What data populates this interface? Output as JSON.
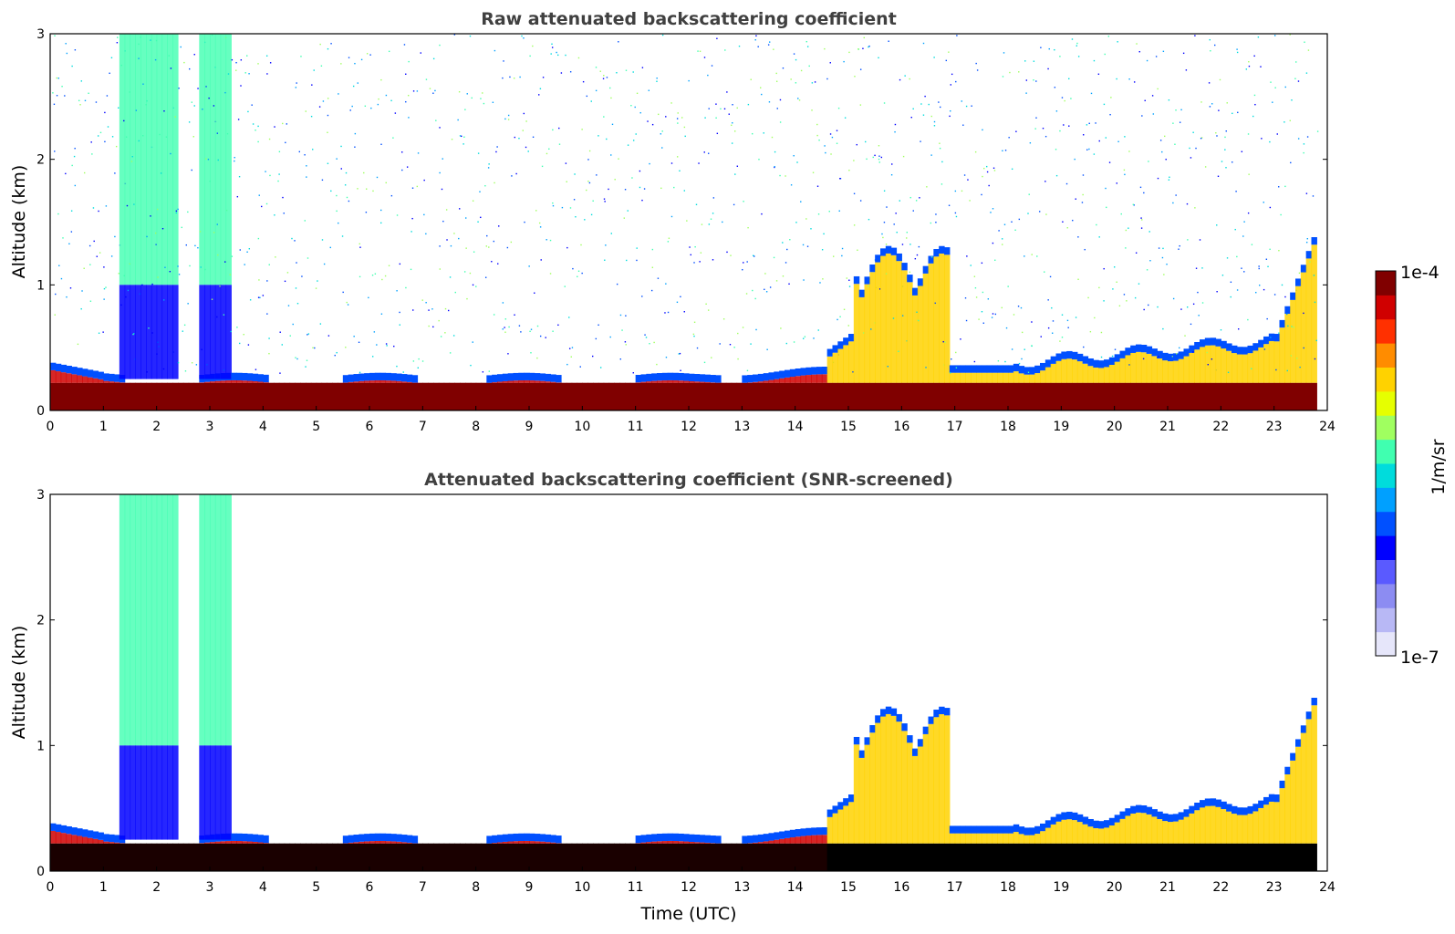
{
  "chart_data": [
    {
      "type": "heatmap",
      "id": "raw",
      "title": "Raw attenuated backscattering coefficient",
      "ylabel": "Altitude (km)",
      "xlabel": "",
      "xlim": [
        0,
        24
      ],
      "ylim": [
        0,
        3
      ],
      "x_ticks": [
        "0",
        "1",
        "2",
        "3",
        "4",
        "5",
        "6",
        "7",
        "8",
        "9",
        "10",
        "11",
        "12",
        "13",
        "14",
        "15",
        "16",
        "17",
        "18",
        "19",
        "20",
        "21",
        "22",
        "23",
        "24"
      ],
      "y_ticks": [
        "0",
        "1",
        "2",
        "3"
      ],
      "features": [
        {
          "name": "surface aerosol layer",
          "x_range": [
            0,
            14.5
          ],
          "top_km": 0.25
        },
        {
          "name": "elevated aerosol plume",
          "x_range": [
            1.3,
            2.4
          ],
          "top_km": 3.0
        },
        {
          "name": "elevated aerosol plume",
          "x_range": [
            2.8,
            3.4
          ],
          "top_km": 3.0
        },
        {
          "name": "boundary layer growth",
          "x_range": [
            14.5,
            23.8
          ],
          "top_km": 1.3
        },
        {
          "name": "noisy background",
          "x_range": [
            0,
            24
          ],
          "altitude_km": [
            0.3,
            3.0
          ]
        }
      ]
    },
    {
      "type": "heatmap",
      "id": "snr",
      "title": "Attenuated backscattering coefficient (SNR-screened)",
      "ylabel": "Altitude (km)",
      "xlabel": "Time (UTC)",
      "xlim": [
        0,
        24
      ],
      "ylim": [
        0,
        3
      ],
      "x_ticks": [
        "0",
        "1",
        "2",
        "3",
        "4",
        "5",
        "6",
        "7",
        "8",
        "9",
        "10",
        "11",
        "12",
        "13",
        "14",
        "15",
        "16",
        "17",
        "18",
        "19",
        "20",
        "21",
        "22",
        "23",
        "24"
      ],
      "y_ticks": [
        "0",
        "1",
        "2",
        "3"
      ],
      "features": [
        {
          "name": "surface aerosol layer",
          "x_range": [
            0,
            14.5
          ],
          "top_km": 0.25
        },
        {
          "name": "elevated aerosol plume",
          "x_range": [
            1.3,
            2.4
          ],
          "top_km": 3.0
        },
        {
          "name": "elevated aerosol plume",
          "x_range": [
            2.8,
            3.4
          ],
          "top_km": 3.0
        },
        {
          "name": "boundary layer growth",
          "x_range": [
            14.5,
            23.8
          ],
          "top_km": 1.5
        }
      ]
    }
  ],
  "colorbar": {
    "label": "1/m/sr",
    "max_label": "1e-4",
    "min_label": "1e-7",
    "colors": [
      "#e6e6fa",
      "#b8b8f5",
      "#8c8cf2",
      "#5a5aff",
      "#0000ff",
      "#0050ff",
      "#00a0ff",
      "#00dcdc",
      "#40ffb0",
      "#a0ff60",
      "#e6ff00",
      "#ffd200",
      "#ff8c00",
      "#ff3000",
      "#d00000",
      "#800000"
    ]
  }
}
